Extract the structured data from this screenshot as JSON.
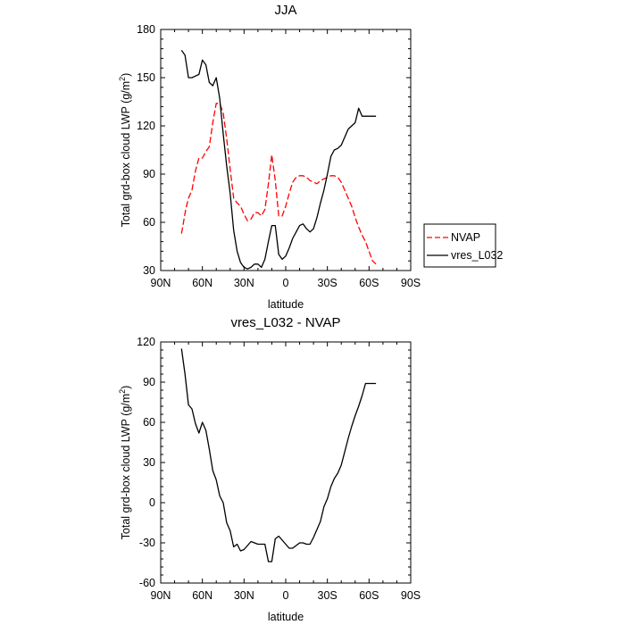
{
  "chart_data": [
    {
      "type": "line",
      "title": "JJA",
      "xlabel": "latitude",
      "ylabel": "Total grd-box cloud LWP (g/m",
      "ylabel_sup": "2",
      "ylabel_close": ")",
      "xlim": [
        90,
        -90
      ],
      "ylim": [
        30,
        180
      ],
      "xticks": [
        90,
        60,
        30,
        0,
        -30,
        -60,
        -90
      ],
      "xtick_labels": [
        "90N",
        "60N",
        "30N",
        "0",
        "30S",
        "60S",
        "90S"
      ],
      "yticks": [
        30,
        60,
        90,
        120,
        150,
        180
      ],
      "ytick_labels": [
        "30",
        "60",
        "90",
        "120",
        "150",
        "180"
      ],
      "legend": {
        "placement": "right",
        "entries": [
          "NVAP",
          "vres_L032"
        ]
      },
      "series": [
        {
          "name": "NVAP",
          "color": "#ff0000",
          "dash": true,
          "x": [
            75,
            72,
            70,
            67.5,
            65,
            62.5,
            60,
            57.5,
            55,
            52.5,
            50,
            47.5,
            45,
            42.5,
            40,
            37.5,
            35,
            32.5,
            30,
            27.5,
            25,
            22.5,
            20,
            17.5,
            15,
            12.5,
            10,
            7.5,
            5,
            2.5,
            0,
            -2.5,
            -5,
            -7.5,
            -10,
            -12.5,
            -15,
            -17.5,
            -20,
            -22.5,
            -25,
            -27.5,
            -30,
            -32.5,
            -35,
            -37.5,
            -40,
            -42.5,
            -45,
            -47.5,
            -50,
            -52.5,
            -55,
            -57.5,
            -60,
            -62.5,
            -65
          ],
          "y": [
            53,
            68,
            75,
            80,
            92,
            100,
            100,
            104,
            107,
            122,
            134,
            134,
            128,
            112,
            93,
            75,
            72,
            70,
            65,
            61,
            62,
            66,
            66,
            64,
            68,
            84,
            102,
            86,
            64,
            64,
            70,
            78,
            85,
            88,
            89,
            89,
            88,
            86,
            85,
            84,
            86,
            87,
            88,
            89,
            89,
            88,
            85,
            80,
            75,
            70,
            63,
            57,
            52,
            48,
            42,
            36,
            34
          ]
        },
        {
          "name": "vres_L032",
          "color": "#000000",
          "dash": false,
          "x": [
            75,
            72.5,
            70,
            67.5,
            65,
            62.5,
            60,
            57.5,
            55,
            52.5,
            50,
            47.5,
            45,
            42.5,
            40,
            37.5,
            35,
            32.5,
            30,
            27.5,
            25,
            22.5,
            20,
            17.5,
            15,
            12.5,
            10,
            7.5,
            5,
            2.5,
            0,
            -2.5,
            -5,
            -7.5,
            -10,
            -12.5,
            -15,
            -17.5,
            -20,
            -22.5,
            -25,
            -27.5,
            -30,
            -32.5,
            -35,
            -37.5,
            -40,
            -42.5,
            -45,
            -47.5,
            -50,
            -52.5,
            -55,
            -57.5,
            -60,
            -62.5,
            -65
          ],
          "y": [
            167,
            164,
            150,
            150,
            151,
            152,
            161,
            158,
            147,
            145,
            150,
            137,
            115,
            95,
            78,
            55,
            42,
            35,
            32,
            31,
            32,
            34,
            34,
            32,
            37,
            48,
            58,
            58,
            40,
            37,
            39,
            44,
            50,
            54,
            58,
            59,
            56,
            54,
            56,
            63,
            72,
            80,
            90,
            101,
            105,
            106,
            108,
            113,
            118,
            120,
            122,
            131,
            126,
            126,
            126,
            126,
            126
          ]
        }
      ]
    },
    {
      "type": "line",
      "title": "vres_L032 - NVAP",
      "xlabel": "latitude",
      "ylabel": "Total grd-box cloud LWP (g/m",
      "ylabel_sup": "2",
      "ylabel_close": ")",
      "xlim": [
        90,
        -90
      ],
      "ylim": [
        -60,
        120
      ],
      "xticks": [
        90,
        60,
        30,
        0,
        -30,
        -60,
        -90
      ],
      "xtick_labels": [
        "90N",
        "60N",
        "30N",
        "0",
        "30S",
        "60S",
        "90S"
      ],
      "yticks": [
        -60,
        -30,
        0,
        30,
        60,
        90,
        120
      ],
      "ytick_labels": [
        "-60",
        "-30",
        "0",
        "30",
        "60",
        "90",
        "120"
      ],
      "series": [
        {
          "name": "vres_L032 - NVAP",
          "color": "#000000",
          "dash": false,
          "x": [
            75,
            72.5,
            70,
            67.5,
            65,
            62.5,
            60,
            57.5,
            55,
            52.5,
            50,
            47.5,
            45,
            42.5,
            40,
            37.5,
            35,
            32.5,
            30,
            27.5,
            25,
            22.5,
            20,
            17.5,
            15,
            12.5,
            10,
            7.5,
            5,
            2.5,
            0,
            -2.5,
            -5,
            -7.5,
            -10,
            -12.5,
            -15,
            -17.5,
            -20,
            -22.5,
            -25,
            -27.5,
            -30,
            -32.5,
            -35,
            -37.5,
            -40,
            -42.5,
            -45,
            -47.5,
            -50,
            -52.5,
            -55,
            -57.5,
            -60,
            -62.5,
            -65
          ],
          "y": [
            115,
            96,
            73,
            70,
            59,
            52,
            60,
            54,
            40,
            24,
            17,
            5,
            0,
            -15,
            -21,
            -33,
            -31,
            -36,
            -35,
            -32,
            -29,
            -30,
            -31,
            -31,
            -31,
            -44,
            -44,
            -27,
            -25,
            -28,
            -31,
            -34,
            -34,
            -32,
            -30,
            -30,
            -31,
            -31,
            -26,
            -20,
            -14,
            -3,
            3,
            12,
            18,
            22,
            28,
            38,
            48,
            57,
            65,
            72,
            80,
            89,
            89,
            89,
            89
          ]
        }
      ]
    }
  ]
}
